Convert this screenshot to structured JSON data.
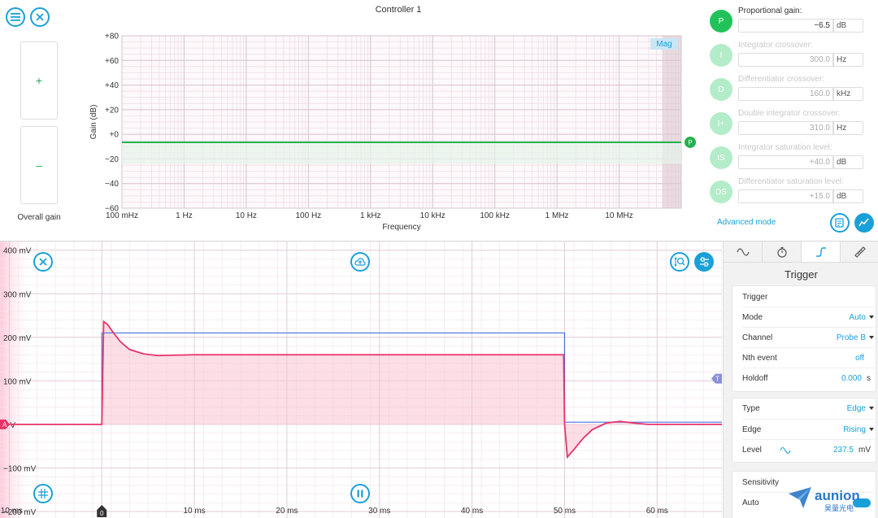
{
  "top": {
    "title": "Controller 1",
    "overall_gain": {
      "plus": "+",
      "minus": "–",
      "label": "Overall gain"
    },
    "bode": {
      "mag_badge": "Mag",
      "ylabel": "Gain (dB)",
      "xlabel": "Frequency",
      "marker_label": "P"
    },
    "pid": [
      {
        "badge": "P",
        "label": "Proportional gain:",
        "value": "−6.5",
        "unit": "dB",
        "active": true
      },
      {
        "badge": "I",
        "label": "Integrator crossover:",
        "value": "300.0",
        "unit": "Hz",
        "active": false
      },
      {
        "badge": "D",
        "label": "Differentiator crossover:",
        "value": "160.0",
        "unit": "kHz",
        "active": false
      },
      {
        "badge": "I+",
        "label": "Double integrator crossover:",
        "value": "310.0",
        "unit": "Hz",
        "active": false
      },
      {
        "badge": "IS",
        "label": "Integrator saturation level:",
        "value": "+40.0",
        "unit": "dB",
        "active": false
      },
      {
        "badge": "DS",
        "label": "Differentiator saturation level:",
        "value": "+15.0",
        "unit": "dB",
        "active": false
      }
    ],
    "advanced_mode": "Advanced mode"
  },
  "chart_data": [
    {
      "type": "line",
      "title": "",
      "xlabel": "Frequency",
      "ylabel": "Gain (dB)",
      "x_scale": "log",
      "xlim_hz": [
        0.1,
        100000000
      ],
      "ylim": [
        -60,
        80
      ],
      "y_ticks": [
        80,
        60,
        40,
        20,
        0,
        -20,
        -40,
        -60
      ],
      "y_tick_labels": [
        "+80",
        "+60",
        "+40",
        "+20",
        "+0",
        "−20",
        "−40",
        "−60"
      ],
      "x_ticks_hz": [
        0.1,
        1,
        10,
        100,
        1000,
        10000,
        100000,
        1000000,
        10000000
      ],
      "x_tick_labels": [
        "100 mHz",
        "1 Hz",
        "10 Hz",
        "100 Hz",
        "1 kHz",
        "10 kHz",
        "100 kHz",
        "1 MHz",
        "10 MHz"
      ],
      "grid": true,
      "series": [
        {
          "values_db": [
            -6.5,
            -6.5
          ],
          "x_hz": [
            0.1,
            100000000
          ],
          "color": "#22b14c"
        }
      ],
      "shaded_region_above_hz": 50000000
    },
    {
      "type": "line",
      "title": "",
      "xlabel": "",
      "ylabel": "",
      "x_unit": "ms",
      "y_unit": "mV",
      "xlim": [
        -11,
        67
      ],
      "ylim": [
        -215,
        420
      ],
      "x_ticks": [
        -10,
        0,
        10,
        20,
        30,
        40,
        50,
        60
      ],
      "x_tick_labels": [
        "−10 ms",
        "0",
        "10 ms",
        "20 ms",
        "30 ms",
        "40 ms",
        "50 ms",
        "60 ms"
      ],
      "y_ticks": [
        400,
        300,
        200,
        100,
        0,
        -100,
        -200
      ],
      "y_tick_labels": [
        "400 mV",
        "300 mV",
        "200 mV",
        "100 mV",
        "0 V",
        "−100 mV",
        "−200 mV"
      ],
      "grid": true,
      "series": [
        {
          "color": "#4a6fe0",
          "x": [
            -11,
            0,
            0,
            50,
            50,
            67
          ],
          "y": [
            0,
            0,
            210,
            210,
            5,
            5
          ]
        },
        {
          "color": "#e8336a",
          "x": [
            -11,
            0,
            0.2,
            0.6,
            1.2,
            2.0,
            3.0,
            4.5,
            6.0,
            8.0,
            10,
            15,
            20,
            30,
            40,
            49.9,
            50,
            50.3,
            51,
            52,
            53,
            54.5,
            56,
            57.5,
            59,
            61,
            63,
            67
          ],
          "y": [
            0,
            0,
            236,
            230,
            212,
            190,
            172,
            162,
            158,
            159,
            160,
            160,
            160,
            160,
            160,
            160,
            0,
            -75,
            -58,
            -32,
            -12,
            3,
            7,
            3,
            0,
            0,
            0,
            0
          ]
        }
      ],
      "markers": {
        "left_channel": "A",
        "right_trigger": "T",
        "time_origin": "0"
      }
    }
  ],
  "trigger_panel": {
    "heading": "Trigger",
    "cards": {
      "trigger": {
        "title": "Trigger",
        "rows": [
          {
            "label": "Mode",
            "value": "Auto"
          },
          {
            "label": "Channel",
            "value": "Probe B"
          },
          {
            "label": "Nth event",
            "value": "off"
          },
          {
            "label": "Holdoff",
            "value": "0.000",
            "unit": "s"
          }
        ]
      },
      "type": {
        "rows": [
          {
            "label": "Type",
            "value": "Edge"
          },
          {
            "label": "Edge",
            "value": "Rising"
          },
          {
            "label": "Level",
            "value": "237.5",
            "unit": "mV"
          }
        ]
      },
      "sensitivity": {
        "title": "Sensitivity",
        "rows": [
          {
            "label": "Auto"
          }
        ]
      }
    }
  },
  "watermark": {
    "text": "aunion",
    "subtext": "昊量光电"
  }
}
